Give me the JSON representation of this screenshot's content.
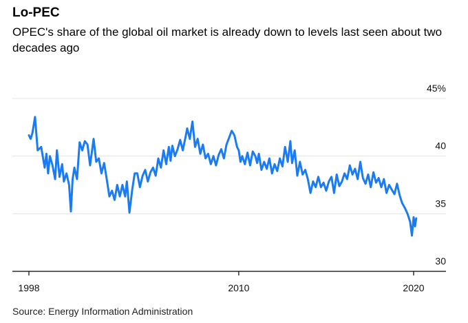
{
  "chart_data": {
    "type": "line",
    "title": "Lo-PEC",
    "subtitle": "OPEC's share of the global oil market is already down to levels last seen about two decades ago",
    "source": "Source: Energy Information Administration",
    "x_ticks": [
      1998,
      2010,
      2020
    ],
    "y_ticks": [
      {
        "value": 30,
        "label": "30"
      },
      {
        "value": 35,
        "label": "35"
      },
      {
        "value": 40,
        "label": "40"
      },
      {
        "value": 45,
        "label": "45%"
      }
    ],
    "xlim": [
      1998,
      2020.5
    ],
    "ylim": [
      30,
      45
    ],
    "grid": true,
    "color": "#1a7bf2",
    "series": [
      {
        "values": [
          [
            1998.0,
            41.8
          ],
          [
            1998.1,
            41.5
          ],
          [
            1998.2,
            42.0
          ],
          [
            1998.35,
            43.4
          ],
          [
            1998.5,
            40.5
          ],
          [
            1998.7,
            40.8
          ],
          [
            1998.9,
            39.0
          ],
          [
            1999.0,
            40.2
          ],
          [
            1999.1,
            38.5
          ],
          [
            1999.2,
            40.0
          ],
          [
            1999.35,
            39.2
          ],
          [
            1999.5,
            38.0
          ],
          [
            1999.6,
            40.5
          ],
          [
            1999.75,
            38.2
          ],
          [
            1999.9,
            39.3
          ],
          [
            2000.0,
            37.8
          ],
          [
            2000.15,
            38.5
          ],
          [
            2000.3,
            37.5
          ],
          [
            2000.4,
            35.2
          ],
          [
            2000.5,
            38.0
          ],
          [
            2000.6,
            39.0
          ],
          [
            2000.75,
            38.0
          ],
          [
            2000.9,
            41.2
          ],
          [
            2001.05,
            40.5
          ],
          [
            2001.2,
            41.3
          ],
          [
            2001.35,
            41.0
          ],
          [
            2001.5,
            39.2
          ],
          [
            2001.7,
            41.5
          ],
          [
            2001.85,
            39.5
          ],
          [
            2002.0,
            39.8
          ],
          [
            2002.15,
            38.5
          ],
          [
            2002.3,
            39.4
          ],
          [
            2002.45,
            38.0
          ],
          [
            2002.6,
            36.5
          ],
          [
            2002.75,
            37.0
          ],
          [
            2002.9,
            36.2
          ],
          [
            2003.05,
            37.5
          ],
          [
            2003.2,
            36.5
          ],
          [
            2003.35,
            37.5
          ],
          [
            2003.5,
            36.5
          ],
          [
            2003.6,
            37.8
          ],
          [
            2003.75,
            35.1
          ],
          [
            2003.9,
            37.0
          ],
          [
            2004.05,
            38.5
          ],
          [
            2004.2,
            38.5
          ],
          [
            2004.35,
            37.3
          ],
          [
            2004.5,
            38.3
          ],
          [
            2004.65,
            38.8
          ],
          [
            2004.8,
            37.8
          ],
          [
            2004.95,
            38.6
          ],
          [
            2005.1,
            39.0
          ],
          [
            2005.25,
            38.3
          ],
          [
            2005.4,
            39.8
          ],
          [
            2005.55,
            39.0
          ],
          [
            2005.7,
            40.5
          ],
          [
            2005.85,
            39.3
          ],
          [
            2006.0,
            40.8
          ],
          [
            2006.1,
            39.6
          ],
          [
            2006.2,
            40.9
          ],
          [
            2006.35,
            40.0
          ],
          [
            2006.5,
            40.6
          ],
          [
            2006.65,
            41.4
          ],
          [
            2006.8,
            40.5
          ],
          [
            2006.95,
            41.6
          ],
          [
            2007.05,
            42.4
          ],
          [
            2007.2,
            41.5
          ],
          [
            2007.35,
            43.0
          ],
          [
            2007.5,
            40.8
          ],
          [
            2007.65,
            41.5
          ],
          [
            2007.8,
            40.2
          ],
          [
            2007.95,
            41.0
          ],
          [
            2008.1,
            39.8
          ],
          [
            2008.25,
            40.2
          ],
          [
            2008.4,
            39.3
          ],
          [
            2008.55,
            40.0
          ],
          [
            2008.7,
            39.2
          ],
          [
            2008.85,
            40.1
          ],
          [
            2009.0,
            40.6
          ],
          [
            2009.15,
            39.8
          ],
          [
            2009.3,
            41.0
          ],
          [
            2009.45,
            41.6
          ],
          [
            2009.6,
            42.2
          ],
          [
            2009.75,
            41.8
          ],
          [
            2009.9,
            40.8
          ],
          [
            2010.0,
            40.5
          ],
          [
            2010.1,
            39.5
          ],
          [
            2010.2,
            40.0
          ],
          [
            2010.35,
            39.3
          ],
          [
            2010.5,
            40.3
          ],
          [
            2010.65,
            39.2
          ],
          [
            2010.8,
            40.4
          ],
          [
            2010.95,
            40.0
          ],
          [
            2011.05,
            39.4
          ],
          [
            2011.15,
            40.2
          ],
          [
            2011.3,
            38.8
          ],
          [
            2011.45,
            39.5
          ],
          [
            2011.6,
            38.9
          ],
          [
            2011.75,
            39.8
          ],
          [
            2011.9,
            38.5
          ],
          [
            2012.05,
            39.3
          ],
          [
            2012.2,
            38.7
          ],
          [
            2012.35,
            39.8
          ],
          [
            2012.5,
            39.1
          ],
          [
            2012.65,
            40.8
          ],
          [
            2012.8,
            39.5
          ],
          [
            2012.95,
            41.3
          ],
          [
            2013.05,
            39.4
          ],
          [
            2013.2,
            40.5
          ],
          [
            2013.35,
            38.3
          ],
          [
            2013.5,
            39.5
          ],
          [
            2013.65,
            38.4
          ],
          [
            2013.8,
            38.8
          ],
          [
            2013.95,
            38.0
          ],
          [
            2014.1,
            36.8
          ],
          [
            2014.25,
            37.8
          ],
          [
            2014.4,
            37.3
          ],
          [
            2014.55,
            38.2
          ],
          [
            2014.7,
            37.3
          ],
          [
            2014.85,
            37.7
          ],
          [
            2015.0,
            37.0
          ],
          [
            2015.15,
            37.8
          ],
          [
            2015.3,
            38.2
          ],
          [
            2015.45,
            36.8
          ],
          [
            2015.6,
            38.4
          ],
          [
            2015.75,
            37.4
          ],
          [
            2015.9,
            37.8
          ],
          [
            2016.05,
            38.5
          ],
          [
            2016.2,
            38.0
          ],
          [
            2016.35,
            39.2
          ],
          [
            2016.5,
            38.4
          ],
          [
            2016.65,
            38.9
          ],
          [
            2016.8,
            38.0
          ],
          [
            2016.95,
            39.5
          ],
          [
            2017.1,
            38.1
          ],
          [
            2017.25,
            37.6
          ],
          [
            2017.4,
            38.4
          ],
          [
            2017.55,
            37.3
          ],
          [
            2017.7,
            38.6
          ],
          [
            2017.85,
            37.7
          ],
          [
            2018.0,
            38.1
          ],
          [
            2018.15,
            37.3
          ],
          [
            2018.3,
            38.0
          ],
          [
            2018.45,
            36.8
          ],
          [
            2018.6,
            37.5
          ],
          [
            2018.75,
            37.1
          ],
          [
            2018.9,
            36.7
          ],
          [
            2019.05,
            37.6
          ],
          [
            2019.2,
            36.6
          ],
          [
            2019.35,
            35.9
          ],
          [
            2019.5,
            35.5
          ],
          [
            2019.65,
            35.0
          ],
          [
            2019.8,
            34.3
          ],
          [
            2019.9,
            33.1
          ],
          [
            2020.0,
            34.7
          ],
          [
            2020.08,
            33.9
          ],
          [
            2020.15,
            34.6
          ]
        ]
      }
    ]
  }
}
